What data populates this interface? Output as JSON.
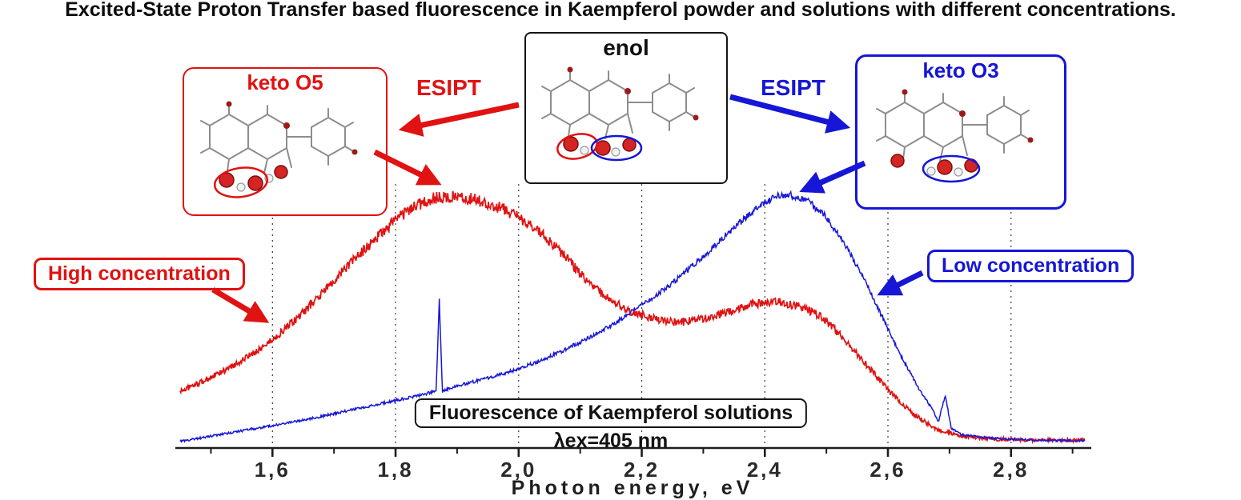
{
  "title": "Excited-State Proton Transfer based fluorescence in Kaempferol powder and solutions with different concentrations.",
  "molecule_panels": {
    "keto_o5": {
      "label": "keto O5",
      "color": "#e01212"
    },
    "enol": {
      "label": "enol",
      "color": "#111111"
    },
    "keto_o3": {
      "label": "keto O3",
      "color": "#1616d6"
    }
  },
  "esipt": {
    "left_label": "ESIPT",
    "right_label": "ESIPT"
  },
  "callouts": {
    "high_concentration": "High concentration",
    "low_concentration": "Low concentration"
  },
  "colors": {
    "red_series": "#e01212",
    "blue_series": "#1818d8",
    "black": "#111111"
  },
  "chart_data": {
    "type": "line",
    "title": "Fluorescence of Kaempferol solutions",
    "subtitle": "λex=405 nm",
    "xlabel": "Photon energy, eV",
    "ylabel": "",
    "xlim": [
      1.45,
      2.92
    ],
    "ylim": [
      0,
      1.05
    ],
    "grid": "dotted-vertical",
    "legend": "none (labeled by callout boxes)",
    "x_ticks": [
      1.6,
      1.8,
      2.0,
      2.2,
      2.4,
      2.6,
      2.8
    ],
    "x_tick_labels": [
      "1,6",
      "1,8",
      "2,0",
      "2,2",
      "2,4",
      "2,6",
      "2,8"
    ],
    "x_minor_ticks": [
      1.5,
      1.7,
      1.9,
      2.1,
      2.3,
      2.5,
      2.7,
      2.9
    ],
    "series": [
      {
        "name": "High concentration (keto O5 emission)",
        "color": "#e01212",
        "noise": 0.018,
        "points": [
          [
            1.45,
            0.215
          ],
          [
            1.48,
            0.245
          ],
          [
            1.52,
            0.29
          ],
          [
            1.56,
            0.345
          ],
          [
            1.6,
            0.41
          ],
          [
            1.64,
            0.49
          ],
          [
            1.68,
            0.585
          ],
          [
            1.72,
            0.685
          ],
          [
            1.76,
            0.775
          ],
          [
            1.8,
            0.865
          ],
          [
            1.83,
            0.915
          ],
          [
            1.86,
            0.945
          ],
          [
            1.9,
            0.955
          ],
          [
            1.94,
            0.935
          ],
          [
            1.98,
            0.9
          ],
          [
            2.02,
            0.845
          ],
          [
            2.06,
            0.765
          ],
          [
            2.1,
            0.66
          ],
          [
            2.14,
            0.575
          ],
          [
            2.18,
            0.52
          ],
          [
            2.22,
            0.49
          ],
          [
            2.26,
            0.475
          ],
          [
            2.3,
            0.49
          ],
          [
            2.34,
            0.515
          ],
          [
            2.38,
            0.545
          ],
          [
            2.42,
            0.555
          ],
          [
            2.46,
            0.535
          ],
          [
            2.49,
            0.5
          ],
          [
            2.52,
            0.435
          ],
          [
            2.56,
            0.33
          ],
          [
            2.6,
            0.22
          ],
          [
            2.64,
            0.13
          ],
          [
            2.68,
            0.07
          ],
          [
            2.72,
            0.045
          ],
          [
            2.76,
            0.035
          ],
          [
            2.8,
            0.032
          ],
          [
            2.85,
            0.03
          ],
          [
            2.9,
            0.03
          ],
          [
            2.92,
            0.03
          ]
        ]
      },
      {
        "name": "Low concentration (keto O3 emission)",
        "color": "#1818d8",
        "noise": 0.01,
        "points": [
          [
            1.45,
            0.025
          ],
          [
            1.5,
            0.045
          ],
          [
            1.55,
            0.065
          ],
          [
            1.6,
            0.085
          ],
          [
            1.65,
            0.105
          ],
          [
            1.7,
            0.13
          ],
          [
            1.75,
            0.155
          ],
          [
            1.8,
            0.18
          ],
          [
            1.84,
            0.2
          ],
          [
            1.866,
            0.215
          ],
          [
            1.871,
            0.56
          ],
          [
            1.876,
            0.215
          ],
          [
            1.9,
            0.235
          ],
          [
            1.95,
            0.265
          ],
          [
            2.0,
            0.3
          ],
          [
            2.05,
            0.345
          ],
          [
            2.1,
            0.4
          ],
          [
            2.15,
            0.465
          ],
          [
            2.2,
            0.54
          ],
          [
            2.25,
            0.625
          ],
          [
            2.3,
            0.725
          ],
          [
            2.35,
            0.835
          ],
          [
            2.39,
            0.915
          ],
          [
            2.42,
            0.955
          ],
          [
            2.44,
            0.96
          ],
          [
            2.47,
            0.935
          ],
          [
            2.5,
            0.875
          ],
          [
            2.53,
            0.77
          ],
          [
            2.56,
            0.645
          ],
          [
            2.59,
            0.5
          ],
          [
            2.62,
            0.355
          ],
          [
            2.65,
            0.225
          ],
          [
            2.67,
            0.155
          ],
          [
            2.682,
            0.1
          ],
          [
            2.693,
            0.2
          ],
          [
            2.703,
            0.075
          ],
          [
            2.72,
            0.05
          ],
          [
            2.76,
            0.038
          ],
          [
            2.8,
            0.033
          ],
          [
            2.85,
            0.03
          ],
          [
            2.9,
            0.028
          ],
          [
            2.92,
            0.027
          ]
        ]
      }
    ]
  }
}
